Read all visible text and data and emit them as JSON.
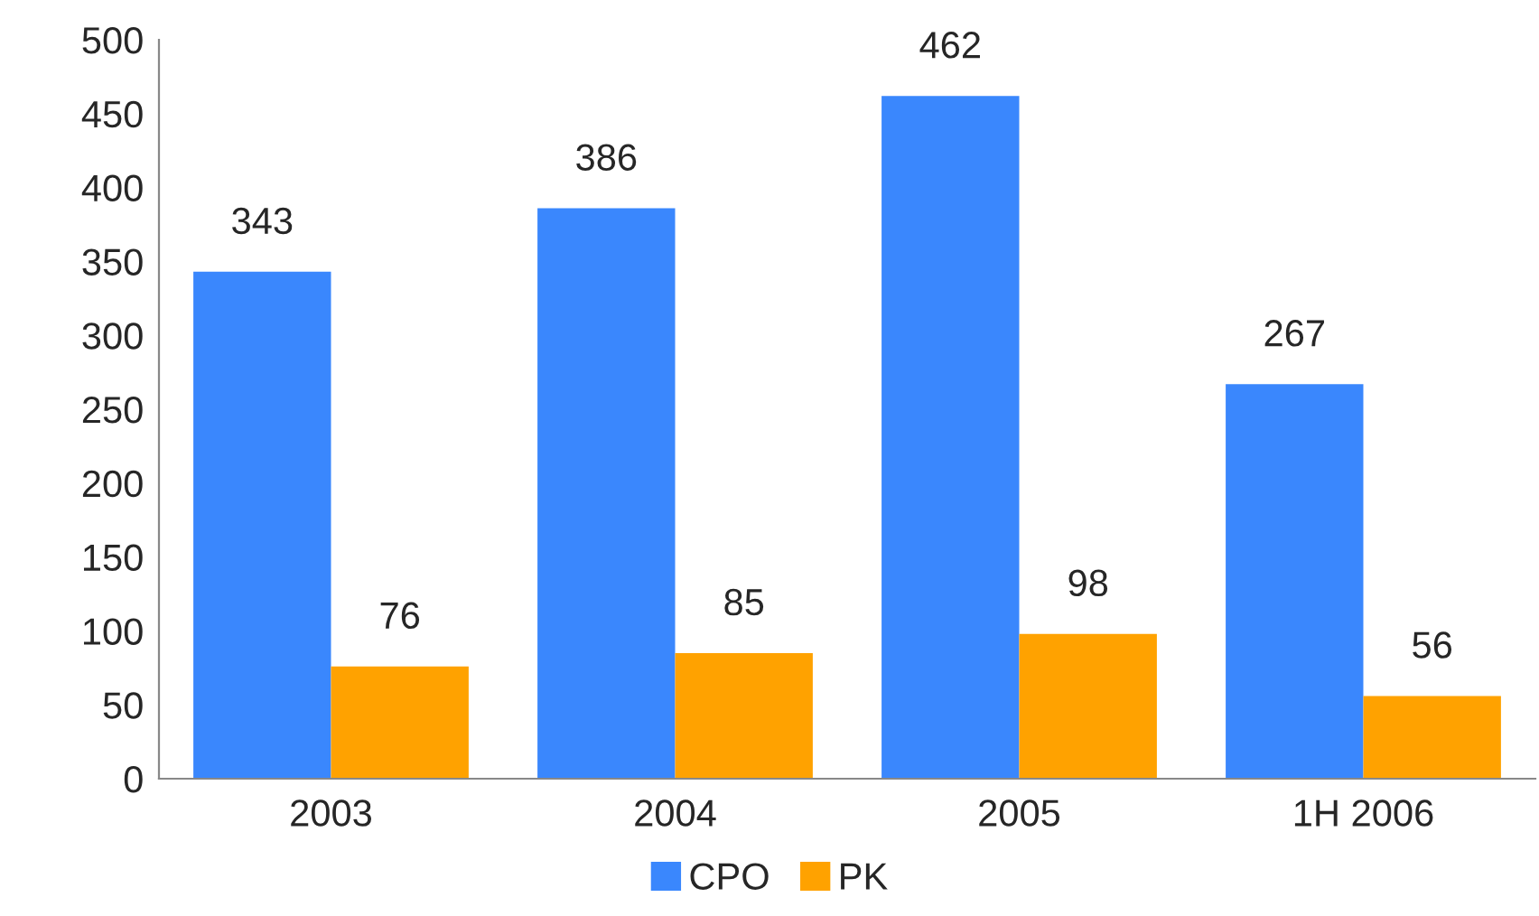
{
  "chart_data": {
    "type": "bar",
    "categories": [
      "2003",
      "2004",
      "2005",
      "1H 2006"
    ],
    "series": [
      {
        "name": "CPO",
        "color": "#3a87fd",
        "values": [
          343,
          386,
          462,
          267
        ]
      },
      {
        "name": "PK",
        "color": "#ffa200",
        "values": [
          76,
          85,
          98,
          56
        ]
      }
    ],
    "ylim": [
      0,
      500
    ],
    "yticks": [
      0,
      50,
      100,
      150,
      200,
      250,
      300,
      350,
      400,
      450,
      500
    ],
    "data_labels": true,
    "grid": false,
    "legend": "bottom"
  }
}
